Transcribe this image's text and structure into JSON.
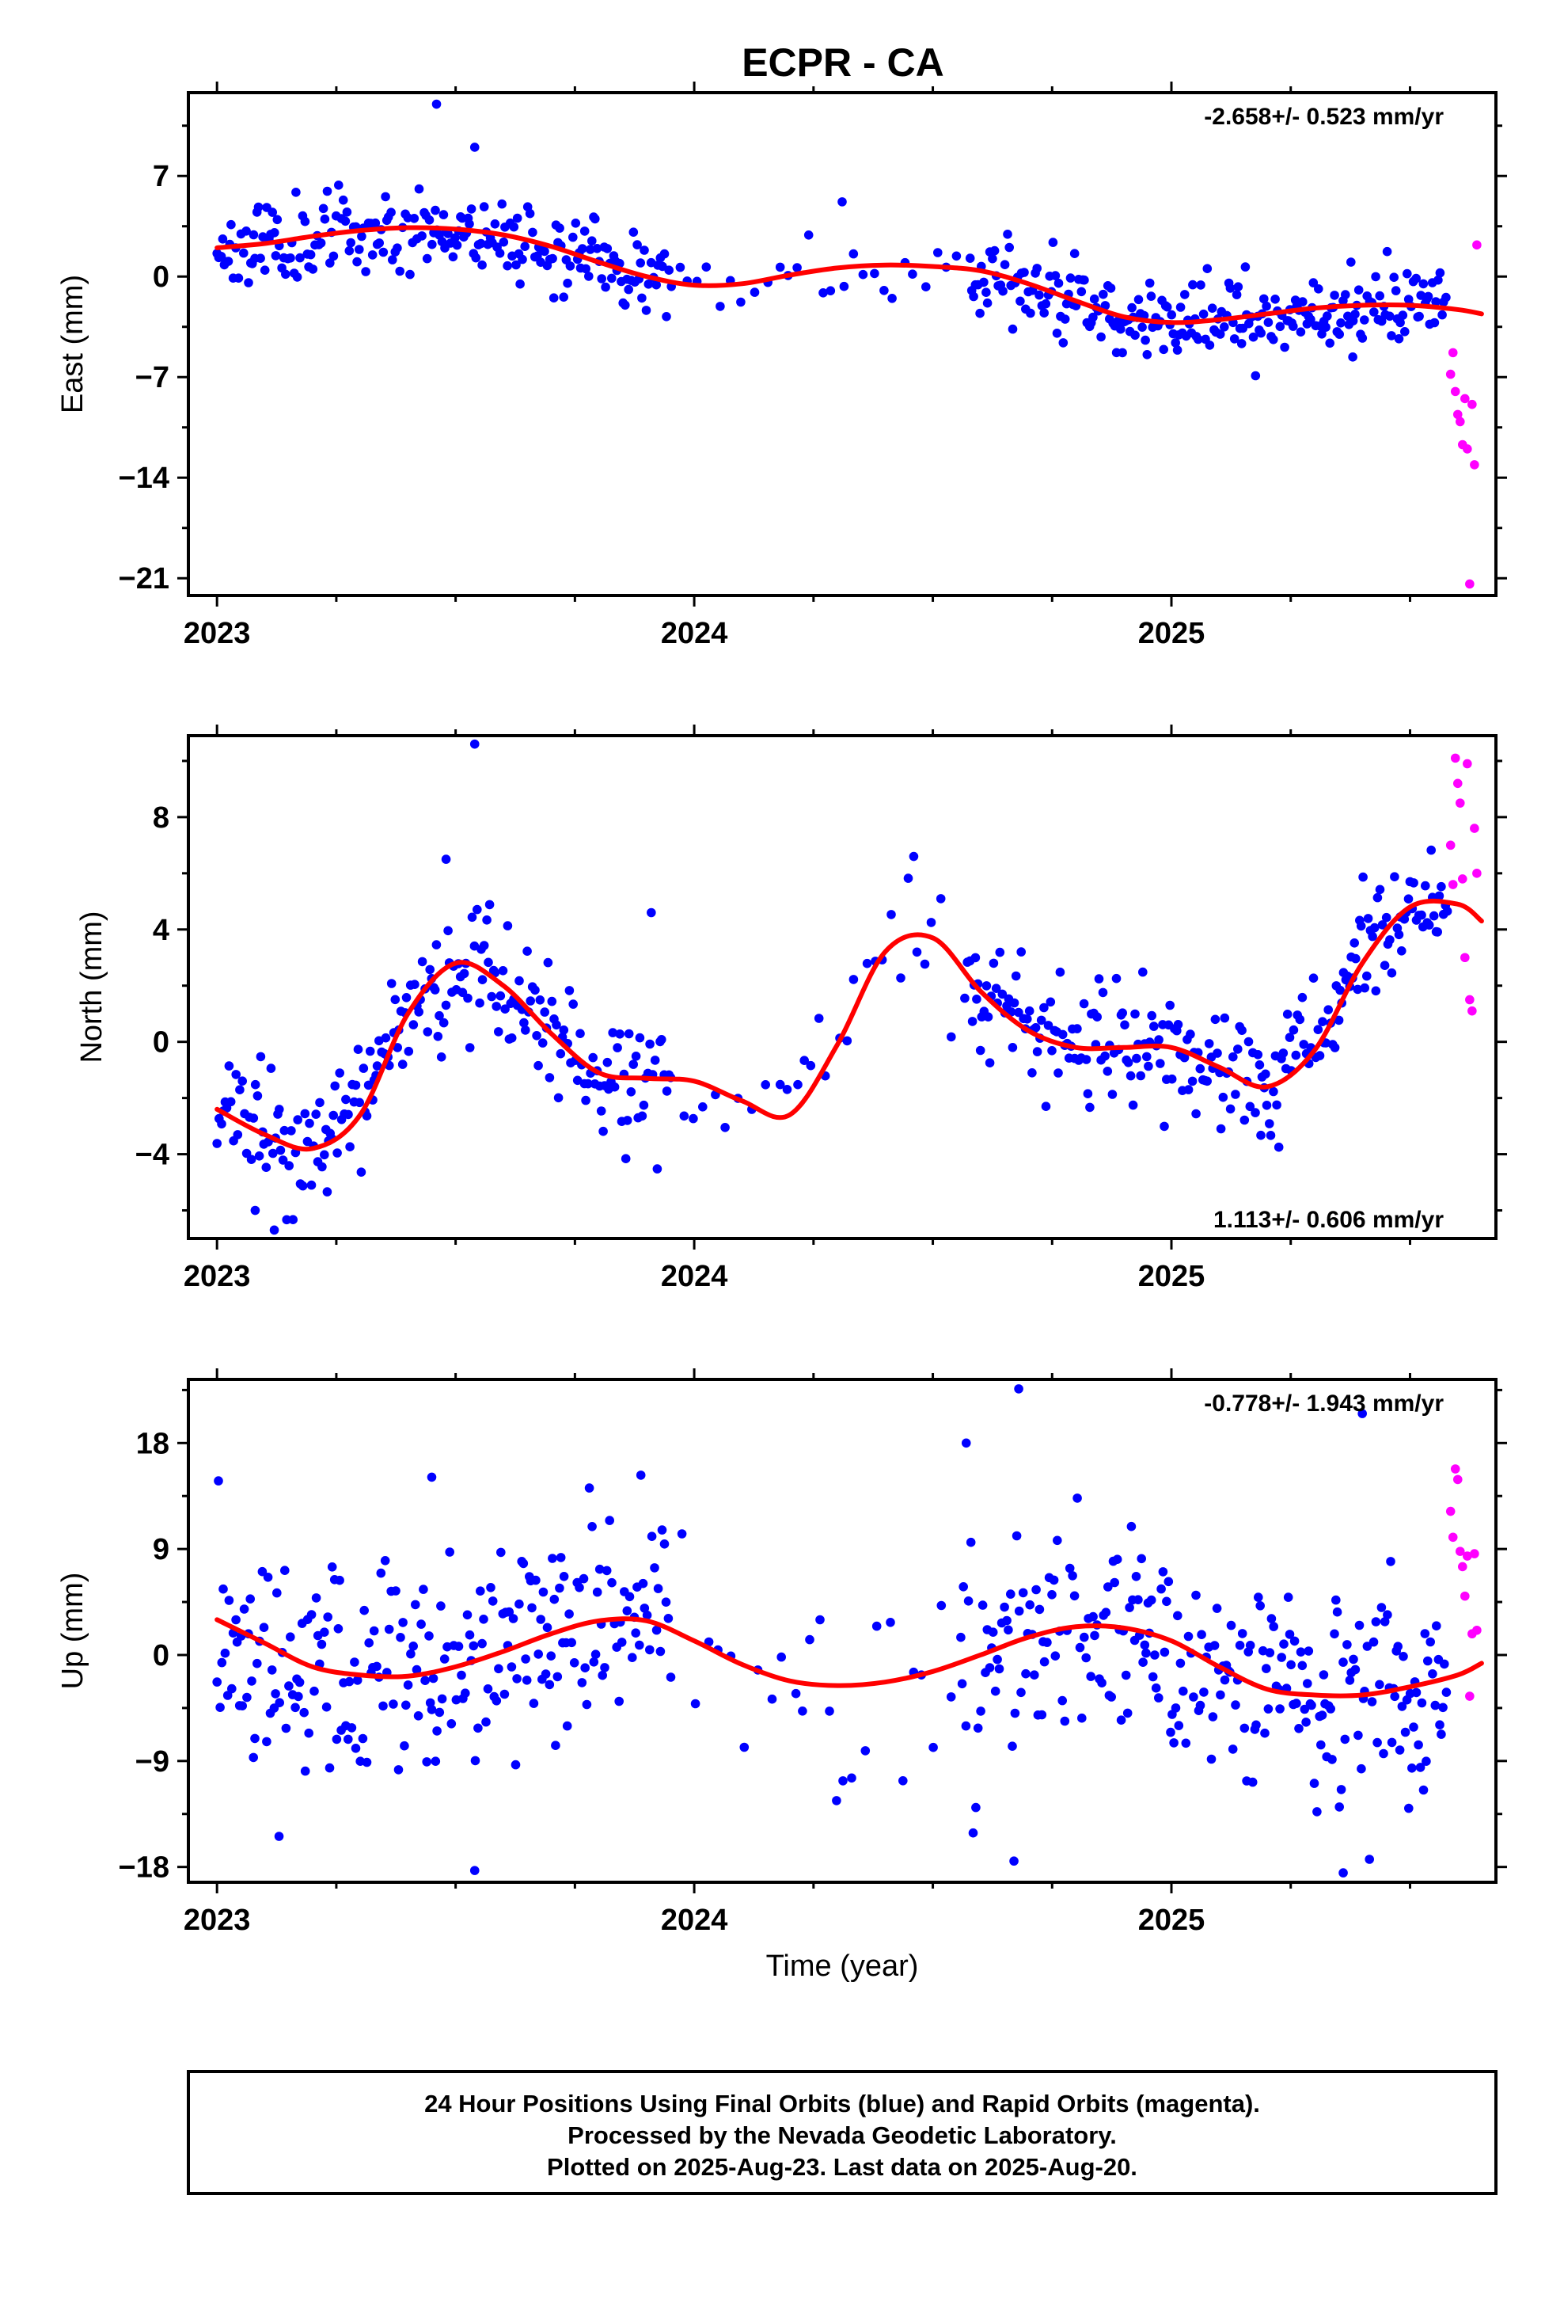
{
  "title": "ECPR - CA",
  "footer": {
    "lines": [
      "24 Hour Positions Using Final Orbits (blue) and Rapid Orbits (magenta).",
      "Processed by the Nevada Geodetic Laboratory.",
      "Plotted on 2025-Aug-23. Last data on 2025-Aug-20."
    ]
  },
  "colors": {
    "final": "#0000ff",
    "rapid": "#ff00ff",
    "fit": "#ff0000",
    "frame": "#000000"
  },
  "chart_data": [
    {
      "type": "scatter",
      "id": "east",
      "ylabel": "East (mm)",
      "xlabel": "",
      "rate_text": "-2.658+/- 0.523 mm/yr",
      "rate_position": "top-right",
      "xlim": [
        2022.94,
        2025.68
      ],
      "ylim": [
        -22.2,
        12.8
      ],
      "xticks": [
        2023,
        2024,
        2025
      ],
      "xtick_labels": [
        "2023",
        "2024",
        "2025"
      ],
      "yticks": [
        7,
        0,
        -7,
        -14,
        -21
      ],
      "ytick_labels": [
        "7",
        "0",
        "−7",
        "−14",
        "−21"
      ],
      "fit": {
        "name": "fit",
        "x": [
          2023.0,
          2023.1,
          2023.2,
          2023.3,
          2023.4,
          2023.5,
          2023.6,
          2023.7,
          2023.8,
          2023.9,
          2024.0,
          2024.1,
          2024.2,
          2024.3,
          2024.4,
          2024.5,
          2024.6,
          2024.7,
          2024.8,
          2024.9,
          2025.0,
          2025.1,
          2025.2,
          2025.3,
          2025.4,
          2025.5,
          2025.6,
          2025.65
        ],
        "values": [
          2.0,
          2.3,
          2.8,
          3.2,
          3.4,
          3.3,
          2.9,
          2.1,
          1.0,
          0.0,
          -0.6,
          -0.5,
          0.1,
          0.6,
          0.8,
          0.7,
          0.4,
          -0.5,
          -1.7,
          -2.8,
          -3.2,
          -3.0,
          -2.6,
          -2.2,
          -2.0,
          -2.0,
          -2.3,
          -2.6
        ]
      },
      "scatter_model": {
        "final": {
          "start": 2023.0,
          "end": 2025.58,
          "spread": 1.4,
          "seed": 11,
          "outliers": [
            [
              2023.46,
              12.0
            ],
            [
              2023.54,
              9.0
            ],
            [
              2024.31,
              5.2
            ],
            [
              2025.38,
              -5.6
            ]
          ]
        },
        "rapid": {
          "x": [
            2025.585,
            2025.59,
            2025.595,
            2025.6,
            2025.605,
            2025.61,
            2025.615,
            2025.62,
            2025.625,
            2025.63,
            2025.635,
            2025.64
          ],
          "values": [
            -6.8,
            -5.3,
            -8.0,
            -9.6,
            -10.1,
            -11.7,
            -8.5,
            -12.0,
            -21.4,
            -8.9,
            -13.1,
            2.2
          ]
        }
      }
    },
    {
      "type": "scatter",
      "id": "north",
      "ylabel": "North (mm)",
      "xlabel": "",
      "rate_text": "1.113+/- 0.606 mm/yr",
      "rate_position": "bottom-right",
      "xlim": [
        2022.94,
        2025.68
      ],
      "ylim": [
        -7.0,
        10.9
      ],
      "xticks": [
        2023,
        2024,
        2025
      ],
      "xtick_labels": [
        "2023",
        "2024",
        "2025"
      ],
      "yticks": [
        8,
        4,
        0,
        -4
      ],
      "ytick_labels": [
        "8",
        "4",
        "0",
        "−4"
      ],
      "fit": {
        "name": "fit",
        "x": [
          2023.0,
          2023.1,
          2023.2,
          2023.3,
          2023.4,
          2023.5,
          2023.6,
          2023.7,
          2023.8,
          2023.9,
          2024.0,
          2024.1,
          2024.2,
          2024.3,
          2024.4,
          2024.5,
          2024.6,
          2024.7,
          2024.8,
          2024.9,
          2025.0,
          2025.1,
          2025.2,
          2025.3,
          2025.4,
          2025.5,
          2025.6,
          2025.65
        ],
        "values": [
          -2.4,
          -3.3,
          -3.8,
          -2.6,
          1.0,
          2.8,
          2.0,
          0.3,
          -1.1,
          -1.3,
          -1.4,
          -2.1,
          -2.6,
          -0.1,
          3.2,
          3.7,
          1.8,
          0.4,
          -0.2,
          -0.2,
          -0.2,
          -0.9,
          -1.6,
          -0.3,
          2.8,
          4.8,
          4.9,
          4.3
        ]
      },
      "scatter_model": {
        "final": {
          "start": 2023.0,
          "end": 2025.58,
          "spread": 1.1,
          "seed": 23,
          "outliers": [
            [
              2023.54,
              10.6
            ],
            [
              2023.48,
              6.5
            ],
            [
              2024.46,
              6.6
            ],
            [
              2023.12,
              -6.7
            ],
            [
              2023.08,
              -6.0
            ],
            [
              2023.91,
              4.6
            ]
          ]
        },
        "rapid": {
          "x": [
            2025.585,
            2025.59,
            2025.595,
            2025.6,
            2025.605,
            2025.61,
            2025.615,
            2025.62,
            2025.625,
            2025.63,
            2025.635,
            2025.64
          ],
          "values": [
            7.0,
            5.6,
            10.1,
            9.2,
            8.5,
            5.8,
            3.0,
            9.9,
            1.5,
            1.1,
            7.6,
            6.0
          ]
        }
      }
    },
    {
      "type": "scatter",
      "id": "up",
      "ylabel": "Up (mm)",
      "xlabel": "Time (year)",
      "rate_text": "-0.778+/- 1.943 mm/yr",
      "rate_position": "top-right",
      "xlim": [
        2022.94,
        2025.68
      ],
      "ylim": [
        -19.3,
        23.4
      ],
      "xticks": [
        2023,
        2024,
        2025
      ],
      "xtick_labels": [
        "2023",
        "2024",
        "2025"
      ],
      "yticks": [
        18,
        9,
        0,
        -9,
        -18
      ],
      "ytick_labels": [
        "18",
        "9",
        "0",
        "−9",
        "−18"
      ],
      "fit": {
        "name": "fit",
        "x": [
          2023.0,
          2023.1,
          2023.2,
          2023.3,
          2023.4,
          2023.5,
          2023.6,
          2023.7,
          2023.8,
          2023.9,
          2024.0,
          2024.1,
          2024.2,
          2024.3,
          2024.4,
          2024.5,
          2024.6,
          2024.7,
          2024.8,
          2024.9,
          2025.0,
          2025.1,
          2025.2,
          2025.3,
          2025.4,
          2025.5,
          2025.6,
          2025.65
        ],
        "values": [
          3.0,
          1.0,
          -1.0,
          -1.7,
          -1.8,
          -1.0,
          0.3,
          1.8,
          2.9,
          2.9,
          1.2,
          -0.8,
          -2.2,
          -2.6,
          -2.3,
          -1.4,
          0.0,
          1.5,
          2.4,
          2.3,
          1.2,
          -1.0,
          -2.9,
          -3.4,
          -3.4,
          -2.7,
          -1.7,
          -0.7
        ]
      },
      "scatter_model": {
        "final": {
          "start": 2023.0,
          "end": 2025.58,
          "spread": 4.8,
          "seed": 37,
          "outliers": [
            [
              2024.68,
              22.6
            ],
            [
              2024.57,
              18.0
            ],
            [
              2025.4,
              20.5
            ],
            [
              2023.45,
              15.1
            ],
            [
              2024.67,
              -17.5
            ],
            [
              2025.36,
              -18.5
            ],
            [
              2023.54,
              -18.3
            ],
            [
              2023.13,
              -15.4
            ]
          ]
        },
        "rapid": {
          "x": [
            2025.585,
            2025.59,
            2025.595,
            2025.6,
            2025.605,
            2025.61,
            2025.615,
            2025.62,
            2025.625,
            2025.63,
            2025.635,
            2025.64
          ],
          "values": [
            12.2,
            10.0,
            15.8,
            14.9,
            8.8,
            7.5,
            5.0,
            8.4,
            -3.5,
            1.8,
            8.6,
            2.1
          ]
        }
      }
    }
  ]
}
